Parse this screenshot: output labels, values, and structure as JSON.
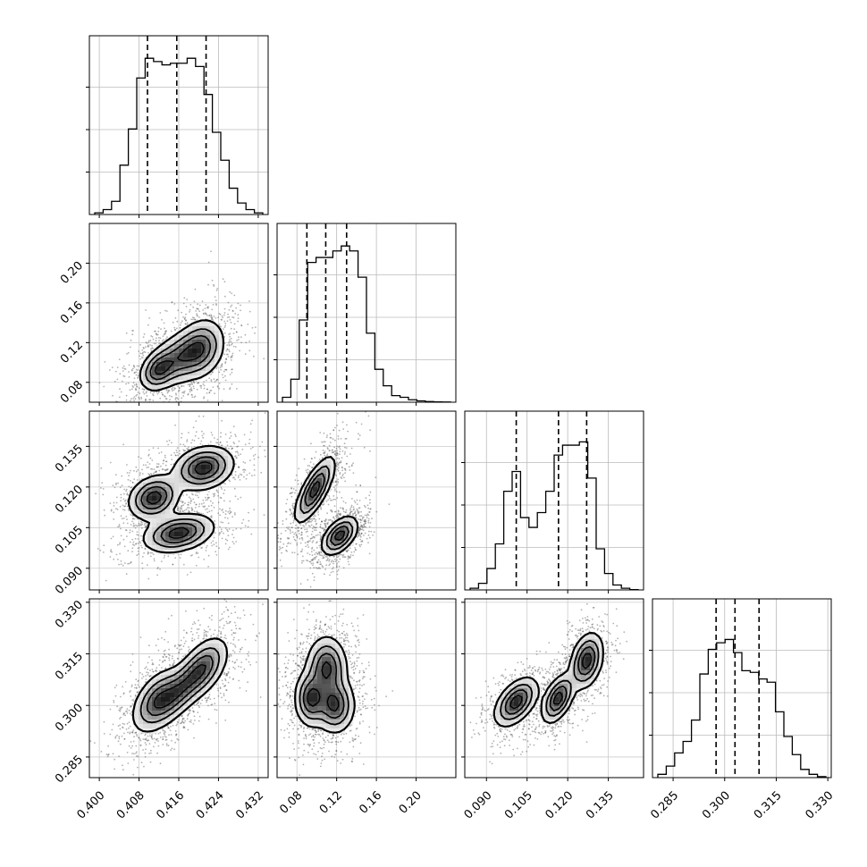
{
  "chart_data": {
    "type": "corner",
    "parameters": [
      {
        "range": [
          0.398,
          0.434
        ],
        "ticks": [
          "0.400",
          "0.408",
          "0.416",
          "0.424",
          "0.432"
        ],
        "quantiles": [
          0.4097,
          0.4156,
          0.4215
        ]
      },
      {
        "range": [
          0.06,
          0.24
        ],
        "ticks": [
          "0.08",
          "0.12",
          "0.16",
          "0.20"
        ],
        "quantiles": [
          0.09,
          0.109,
          0.13
        ]
      },
      {
        "range": [
          0.082,
          0.148
        ],
        "ticks": [
          "0.090",
          "0.105",
          "0.120",
          "0.135"
        ],
        "quantiles": [
          0.101,
          0.1166,
          0.127
        ]
      },
      {
        "range": [
          0.279,
          0.331
        ],
        "ticks": [
          "0.285",
          "0.300",
          "0.315",
          "0.330"
        ],
        "quantiles": [
          0.2975,
          0.303,
          0.31
        ]
      }
    ],
    "histograms": [
      [
        0.01,
        0.03,
        0.08,
        0.3,
        0.52,
        0.83,
        0.95,
        0.93,
        0.91,
        0.92,
        0.92,
        0.95,
        0.9,
        0.73,
        0.5,
        0.33,
        0.16,
        0.07,
        0.03,
        0.01
      ],
      [
        0.03,
        0.14,
        0.5,
        0.85,
        0.88,
        0.88,
        0.92,
        0.95,
        0.92,
        0.76,
        0.42,
        0.2,
        0.1,
        0.04,
        0.03,
        0.015,
        0.008,
        0.004,
        0.002,
        0.001
      ],
      [
        0.01,
        0.04,
        0.13,
        0.28,
        0.6,
        0.72,
        0.44,
        0.38,
        0.47,
        0.6,
        0.82,
        0.88,
        0.88,
        0.9,
        0.68,
        0.25,
        0.1,
        0.03,
        0.01,
        0.002
      ],
      [
        0.02,
        0.07,
        0.15,
        0.22,
        0.35,
        0.63,
        0.78,
        0.82,
        0.84,
        0.76,
        0.65,
        0.64,
        0.6,
        0.58,
        0.4,
        0.25,
        0.14,
        0.05,
        0.02,
        0.006
      ]
    ],
    "pairs": [
      {
        "x": 0,
        "y": 1,
        "blobs": [
          {
            "cx": 0.4118,
            "cy": 0.092,
            "sx": 0.0018,
            "sy": 0.01,
            "rho": 0.3
          },
          {
            "cx": 0.416,
            "cy": 0.104,
            "sx": 0.003,
            "sy": 0.014,
            "rho": 0.4
          },
          {
            "cx": 0.4205,
            "cy": 0.114,
            "sx": 0.0024,
            "sy": 0.015,
            "rho": 0.2
          }
        ]
      },
      {
        "x": 0,
        "y": 2,
        "blobs": [
          {
            "cx": 0.411,
            "cy": 0.116,
            "sx": 0.0025,
            "sy": 0.004,
            "rho": 0.2
          },
          {
            "cx": 0.421,
            "cy": 0.127,
            "sx": 0.003,
            "sy": 0.004,
            "rho": 0.2
          },
          {
            "cx": 0.416,
            "cy": 0.103,
            "sx": 0.0035,
            "sy": 0.0035,
            "rho": 0.3
          }
        ]
      },
      {
        "x": 0,
        "y": 3,
        "blobs": [
          {
            "cx": 0.4115,
            "cy": 0.3015,
            "sx": 0.0025,
            "sy": 0.0045,
            "rho": 0.5
          },
          {
            "cx": 0.416,
            "cy": 0.304,
            "sx": 0.003,
            "sy": 0.005,
            "rho": 0.7
          },
          {
            "cx": 0.421,
            "cy": 0.311,
            "sx": 0.0025,
            "sy": 0.0045,
            "rho": 0.5
          }
        ]
      },
      {
        "x": 1,
        "y": 2,
        "blobs": [
          {
            "cx": 0.098,
            "cy": 0.119,
            "sx": 0.01,
            "sy": 0.006,
            "rho": 0.75
          },
          {
            "cx": 0.123,
            "cy": 0.102,
            "sx": 0.009,
            "sy": 0.0035,
            "rho": 0.5
          }
        ]
      },
      {
        "x": 1,
        "y": 3,
        "blobs": [
          {
            "cx": 0.094,
            "cy": 0.302,
            "sx": 0.008,
            "sy": 0.004,
            "rho": 0.0
          },
          {
            "cx": 0.11,
            "cy": 0.311,
            "sx": 0.01,
            "sy": 0.0045,
            "rho": 0.0
          },
          {
            "cx": 0.118,
            "cy": 0.3,
            "sx": 0.01,
            "sy": 0.004,
            "rho": 0.0
          }
        ]
      },
      {
        "x": 2,
        "y": 3,
        "blobs": [
          {
            "cx": 0.101,
            "cy": 0.301,
            "sx": 0.004,
            "sy": 0.0035,
            "rho": 0.5
          },
          {
            "cx": 0.1165,
            "cy": 0.302,
            "sx": 0.003,
            "sy": 0.0035,
            "rho": 0.5
          },
          {
            "cx": 0.127,
            "cy": 0.313,
            "sx": 0.003,
            "sy": 0.004,
            "rho": 0.3
          }
        ]
      }
    ],
    "quantile_line_style": "dashed",
    "grid": true,
    "line_color": "#000000",
    "scatter_color": "#555555"
  }
}
